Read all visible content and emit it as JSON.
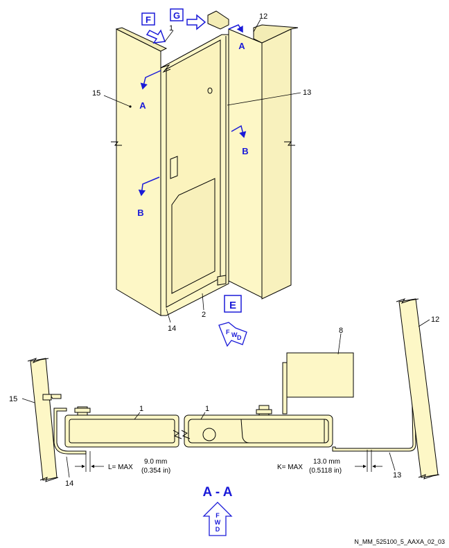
{
  "colors": {
    "panel": "#fdf7c6",
    "stroke": "#000000",
    "callout_blue": "#1a1ad8"
  },
  "view_letters": {
    "f": "F",
    "g": "G",
    "e": "E"
  },
  "section_markers": {
    "a": "A",
    "b": "B"
  },
  "section_title": "A - A",
  "fwd_letters": [
    "F",
    "W",
    "D"
  ],
  "item_numbers": {
    "top_1": "1",
    "top_12": "12",
    "top_13": "13",
    "top_15": "15",
    "top_2": "2",
    "top_14": "14",
    "sec_1_left": "1",
    "sec_1_right": "1",
    "sec_8": "8",
    "sec_12": "12",
    "sec_13": "13",
    "sec_14": "14",
    "sec_15": "15"
  },
  "dimensions": {
    "l_label": "L= MAX",
    "l_value_mm": "9.0 mm",
    "l_value_in": "(0.354 in)",
    "k_label": "K= MAX",
    "k_value_mm": "13.0 mm",
    "k_value_in": "(0.5118 in)"
  },
  "reference_code": "N_MM_525100_5_AAXA_02_03"
}
